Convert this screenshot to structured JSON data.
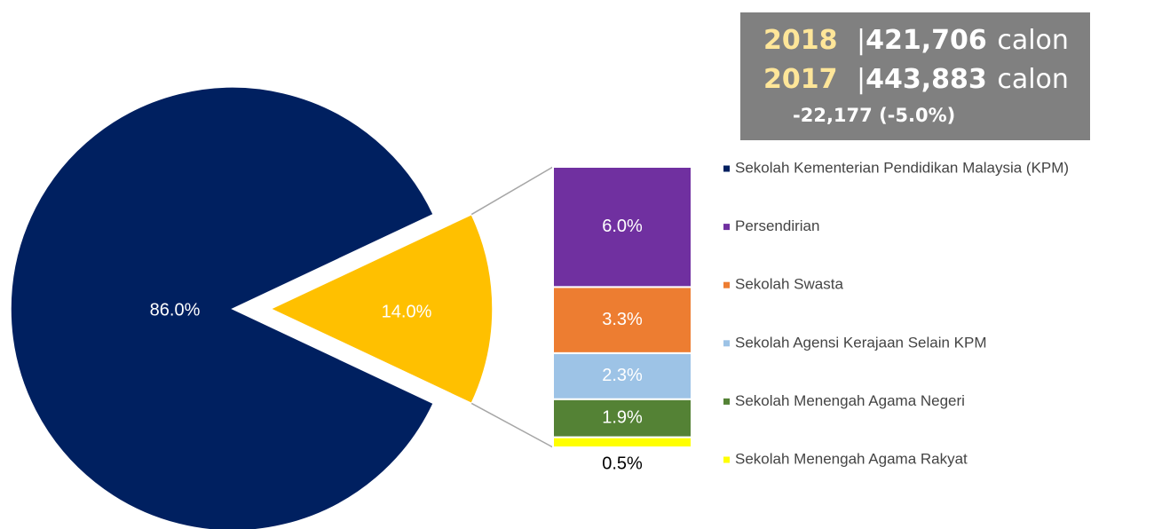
{
  "chart_data": {
    "type": "pie_of_bar",
    "categories": [
      "Sekolah Kementerian Pendidikan Malaysia (KPM)",
      "Persendirian",
      "Sekolah Swasta",
      "Sekolah Agensi Kerajaan Selain KPM",
      "Sekolah Menengah Agama Negeri",
      "Sekolah Menengah Agama Rakyat"
    ],
    "colors": [
      "#002060",
      "#7030a0",
      "#ed7d31",
      "#9dc3e6",
      "#548235",
      "#ffff00"
    ],
    "values": [
      86,
      6,
      3.3,
      2.3,
      1.9,
      0.5
    ],
    "value_labels": [
      "86.0%",
      "6.0%",
      "3.3%",
      "2.3%",
      "1.9%",
      "0.5%"
    ],
    "other": {
      "color": "#ffc000",
      "value": 14,
      "value_label": "14.0%"
    },
    "summary": {
      "rows": [
        {
          "year": "2018",
          "separator": "|",
          "count": "421,706",
          "unit": "calon"
        },
        {
          "year": "2017",
          "separator": "|",
          "count": "443,883",
          "unit": "calon"
        }
      ],
      "change": "-22,177 (-5.0%)"
    }
  }
}
